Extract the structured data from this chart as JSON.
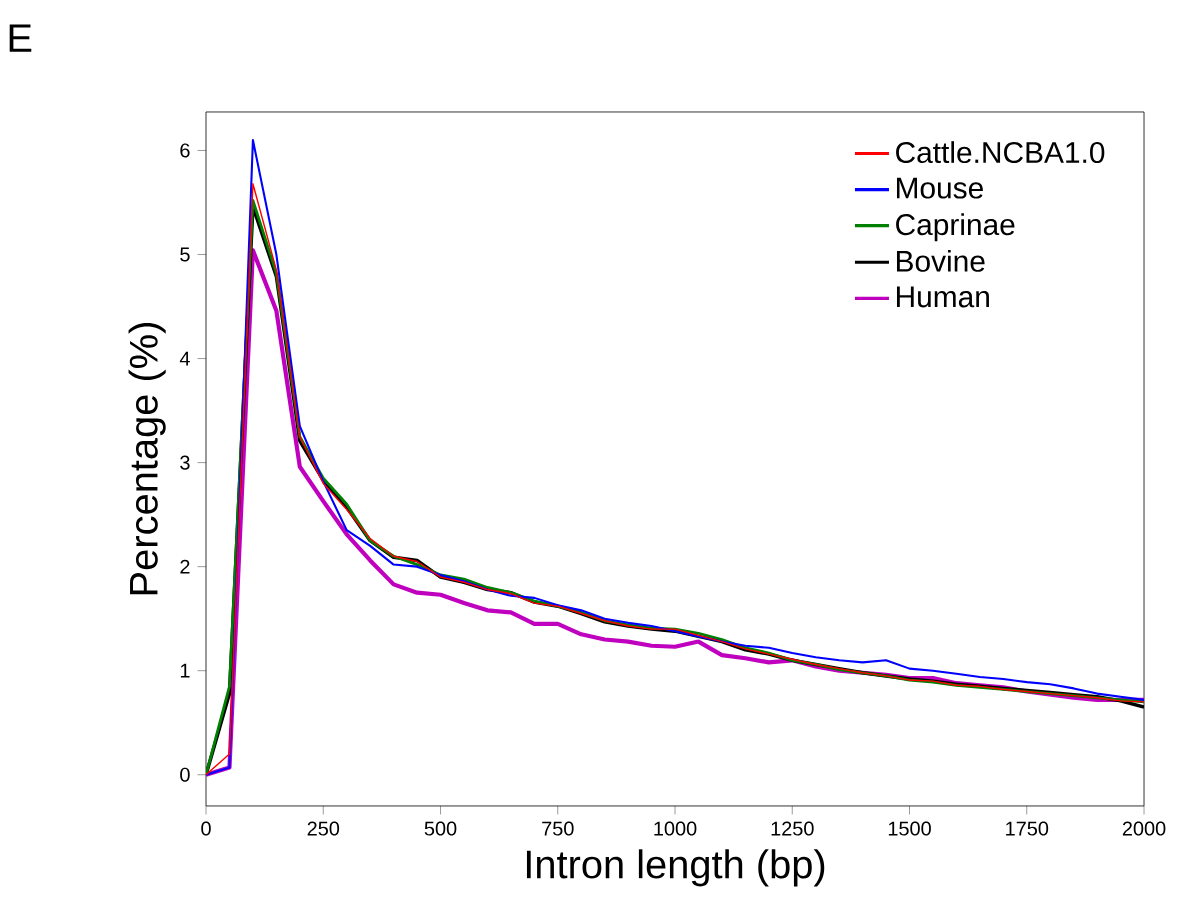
{
  "chart_data": {
    "type": "line",
    "xlabel": "Intron length (bp)",
    "ylabel": "Percentage (%)",
    "annotations": [
      "E"
    ],
    "x": [
      0,
      50,
      100,
      150,
      200,
      250,
      300,
      350,
      400,
      450,
      500,
      550,
      600,
      650,
      700,
      750,
      800,
      850,
      900,
      950,
      1000,
      1050,
      1100,
      1150,
      1200,
      1250,
      1300,
      1350,
      1400,
      1450,
      1500,
      1550,
      1600,
      1650,
      1700,
      1750,
      1800,
      1850,
      1900,
      1950,
      2000
    ],
    "xlim": [
      0,
      2000
    ],
    "xticks": [
      0,
      250,
      500,
      750,
      1000,
      1250,
      1500,
      1750,
      2000
    ],
    "ylim": [
      -0.3,
      6.37
    ],
    "yticks": [
      0,
      1,
      2,
      3,
      4,
      5,
      6
    ],
    "legend": "top right",
    "grid": false,
    "marker": "none",
    "line_style": "solid",
    "series": [
      {
        "name": "Cattle.NCBA1.0",
        "color": "#ff0000",
        "values": [
          0,
          0.2,
          5.68,
          4.85,
          3.25,
          2.8,
          2.55,
          2.27,
          2.1,
          2.05,
          1.9,
          1.85,
          1.78,
          1.74,
          1.65,
          1.62,
          1.55,
          1.48,
          1.43,
          1.4,
          1.4,
          1.34,
          1.28,
          1.21,
          1.16,
          1.11,
          1.06,
          1.02,
          0.98,
          0.95,
          0.91,
          0.9,
          0.86,
          0.85,
          0.82,
          0.8,
          0.78,
          0.76,
          0.74,
          0.71,
          0.7
        ]
      },
      {
        "name": "Mouse",
        "color": "#0000ff",
        "values": [
          0,
          0.07,
          6.1,
          5.0,
          3.35,
          2.82,
          2.35,
          2.2,
          2.02,
          2.0,
          1.92,
          1.86,
          1.78,
          1.72,
          1.7,
          1.63,
          1.58,
          1.5,
          1.46,
          1.43,
          1.38,
          1.33,
          1.28,
          1.24,
          1.22,
          1.17,
          1.13,
          1.1,
          1.08,
          1.1,
          1.02,
          1.0,
          0.97,
          0.94,
          0.92,
          0.89,
          0.87,
          0.83,
          0.78,
          0.75,
          0.72
        ]
      },
      {
        "name": "Caprinae",
        "color": "#008000",
        "values": [
          0,
          0.85,
          5.52,
          4.82,
          3.25,
          2.85,
          2.6,
          2.25,
          2.1,
          2.02,
          1.92,
          1.88,
          1.8,
          1.75,
          1.67,
          1.62,
          1.56,
          1.48,
          1.44,
          1.41,
          1.4,
          1.36,
          1.3,
          1.22,
          1.17,
          1.1,
          1.06,
          1.01,
          0.98,
          0.95,
          0.91,
          0.89,
          0.86,
          0.84,
          0.82,
          0.8,
          0.78,
          0.76,
          0.74,
          0.72,
          0.7
        ]
      },
      {
        "name": "Bovine",
        "color": "#000000",
        "values": [
          0,
          0.78,
          5.46,
          4.79,
          3.21,
          2.83,
          2.57,
          2.25,
          2.09,
          2.06,
          1.9,
          1.85,
          1.78,
          1.75,
          1.66,
          1.62,
          1.55,
          1.47,
          1.43,
          1.4,
          1.38,
          1.33,
          1.28,
          1.2,
          1.16,
          1.1,
          1.06,
          1.02,
          0.98,
          0.95,
          0.92,
          0.9,
          0.87,
          0.85,
          0.83,
          0.81,
          0.79,
          0.77,
          0.75,
          0.71,
          0.65
        ]
      },
      {
        "name": "Human",
        "color": "#bf00bf",
        "values": [
          0,
          0.07,
          5.04,
          4.46,
          2.96,
          2.63,
          2.31,
          2.06,
          1.83,
          1.75,
          1.73,
          1.65,
          1.58,
          1.56,
          1.45,
          1.45,
          1.35,
          1.3,
          1.28,
          1.24,
          1.23,
          1.28,
          1.15,
          1.12,
          1.08,
          1.1,
          1.04,
          1.0,
          0.98,
          0.96,
          0.93,
          0.93,
          0.88,
          0.86,
          0.84,
          0.8,
          0.77,
          0.74,
          0.72,
          0.72,
          0.72
        ]
      }
    ]
  }
}
